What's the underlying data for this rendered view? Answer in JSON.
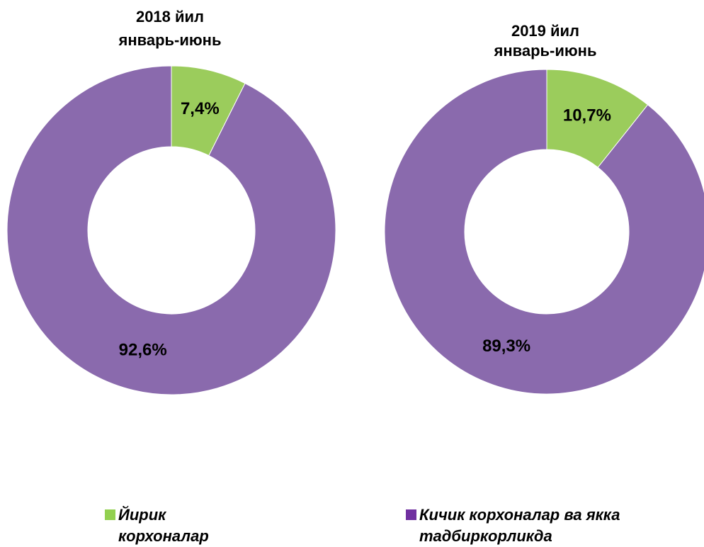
{
  "chart_data": [
    {
      "type": "donut",
      "title": [
        "2018 йил",
        "январь-июнь"
      ],
      "categories": [
        "Йирик корхоналар",
        "Кичик корхоналар ва якка тадбиркорликда"
      ],
      "values": [
        7.4,
        92.6
      ],
      "value_labels": [
        "7,4%",
        "92,6%"
      ],
      "colors": [
        "#9bcc5c",
        "#8a6aad"
      ],
      "legend_colors": [
        "#92d050",
        "#7030a0"
      ],
      "legend": "bottom"
    },
    {
      "type": "donut",
      "title": [
        "2019 йил",
        "январь-июнь"
      ],
      "categories": [
        "Йирик корхоналар",
        "Кичик корхоналар ва якка тадбиркорликда"
      ],
      "values": [
        10.7,
        89.3
      ],
      "value_labels": [
        "10,7%",
        "89,3%"
      ],
      "colors": [
        "#9bcc5c",
        "#8a6aad"
      ]
    }
  ]
}
